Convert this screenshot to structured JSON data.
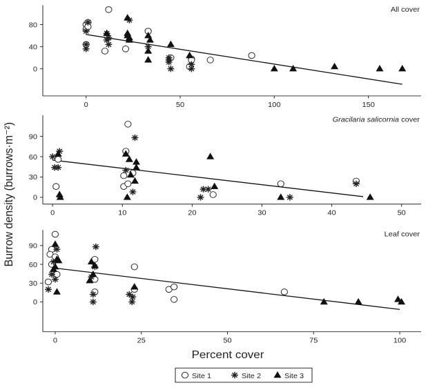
{
  "chart_data": {
    "type": "scatter",
    "ylabel": "Burrow density (burrows·m⁻²)",
    "xlabel": "Percent cover",
    "legend": {
      "placement": "bottom",
      "entries": [
        {
          "label": "Site 1",
          "marker": "open-circle"
        },
        {
          "label": "Site 2",
          "marker": "asterisk"
        },
        {
          "label": "Site 3",
          "marker": "filled-triangle"
        }
      ]
    },
    "panels": [
      {
        "title": "All cover",
        "title_italic": "",
        "title_rest": "All cover",
        "xticks": [
          0,
          50,
          100,
          150
        ],
        "yticks": [
          0,
          40,
          80
        ],
        "xlim": [
          -23,
          178
        ],
        "ylim": [
          -49,
          115
        ],
        "regression": [
          [
            0,
            62
          ],
          [
            168,
            -28
          ]
        ],
        "series": [
          {
            "name": "Site 1",
            "points": [
              [
                0,
                80
              ],
              [
                0,
                72
              ],
              [
                0,
                44
              ],
              [
                1,
                84
              ],
              [
                12,
                107
              ],
              [
                10,
                32
              ],
              [
                21,
                36
              ],
              [
                33,
                68
              ],
              [
                45,
                20
              ],
              [
                55,
                4
              ],
              [
                56,
                18
              ],
              [
                56,
                16
              ],
              [
                66,
                16
              ],
              [
                88,
                24
              ],
              [
                1,
                76
              ]
            ]
          },
          {
            "name": "Site 2",
            "points": [
              [
                0,
                68
              ],
              [
                1,
                84
              ],
              [
                0,
                44
              ],
              [
                0,
                36
              ],
              [
                11,
                64
              ],
              [
                11,
                52
              ],
              [
                12,
                44
              ],
              [
                12,
                56
              ],
              [
                23,
                88
              ],
              [
                33,
                40
              ],
              [
                44,
                12
              ],
              [
                44,
                16
              ],
              [
                45,
                0
              ],
              [
                56,
                0
              ],
              [
                56,
                8
              ],
              [
                44,
                20
              ]
            ]
          },
          {
            "name": "Site 3",
            "points": [
              [
                22,
                92
              ],
              [
                22,
                64
              ],
              [
                23,
                56
              ],
              [
                22,
                60
              ],
              [
                11,
                64
              ],
              [
                33,
                60
              ],
              [
                33,
                32
              ],
              [
                33,
                16
              ],
              [
                34,
                52
              ],
              [
                45,
                44
              ],
              [
                55,
                24
              ],
              [
                100,
                0
              ],
              [
                110,
                0
              ],
              [
                132,
                4
              ],
              [
                156,
                0
              ],
              [
                168,
                0
              ],
              [
                23,
                52
              ]
            ]
          }
        ]
      },
      {
        "title": "Gracilaria salicornia cover",
        "title_italic": "Gracilaria salicornia",
        "title_rest": " cover",
        "xticks": [
          0,
          10,
          20,
          30,
          40,
          50
        ],
        "yticks": [
          0,
          30,
          60,
          90
        ],
        "xlim": [
          -1.4,
          52.8
        ],
        "ylim": [
          -10,
          121
        ],
        "regression": [
          [
            0,
            55
          ],
          [
            44.5,
            1
          ]
        ],
        "series": [
          {
            "name": "Site 1",
            "points": [
              [
                0.5,
                16
              ],
              [
                0.8,
                56
              ],
              [
                10.8,
                108
              ],
              [
                10.5,
                68
              ],
              [
                10.2,
                32
              ],
              [
                10.2,
                16
              ],
              [
                10.8,
                20
              ],
              [
                11.5,
                36
              ],
              [
                23,
                4
              ],
              [
                32.7,
                20
              ],
              [
                43.5,
                24
              ]
            ]
          },
          {
            "name": "Site 2",
            "points": [
              [
                0,
                60
              ],
              [
                0.3,
                44
              ],
              [
                0.8,
                44
              ],
              [
                1,
                68
              ],
              [
                11.8,
                88
              ],
              [
                10.5,
                40
              ],
              [
                11.5,
                8
              ],
              [
                21.6,
                12
              ],
              [
                22.3,
                12
              ],
              [
                21.2,
                0
              ],
              [
                34,
                0
              ],
              [
                43.5,
                20
              ]
            ]
          },
          {
            "name": "Site 3",
            "points": [
              [
                0.8,
                64
              ],
              [
                1,
                4
              ],
              [
                1.1,
                0
              ],
              [
                10.5,
                64
              ],
              [
                11,
                56
              ],
              [
                12,
                52
              ],
              [
                12,
                44
              ],
              [
                11.2,
                33
              ],
              [
                11.8,
                24
              ],
              [
                10.7,
                0
              ],
              [
                22.6,
                60
              ],
              [
                23.2,
                16
              ],
              [
                32.7,
                0
              ],
              [
                45.5,
                0
              ]
            ]
          }
        ]
      },
      {
        "title": "Leaf cover",
        "title_italic": "",
        "title_rest": "Leaf cover",
        "xticks": [
          0,
          25,
          50,
          75,
          100
        ],
        "yticks": [
          0,
          30,
          60,
          90
        ],
        "xlim": [
          -3.6,
          106.2
        ],
        "ylim": [
          -47.6,
          114.8
        ],
        "regression": [
          [
            0,
            54
          ],
          [
            100,
            -12
          ]
        ],
        "series": [
          {
            "name": "Site 1",
            "points": [
              [
                0,
                108
              ],
              [
                -1,
                84
              ],
              [
                -1.5,
                76
              ],
              [
                0,
                72
              ],
              [
                -1,
                60
              ],
              [
                -2,
                32
              ],
              [
                0.5,
                44
              ],
              [
                11.5,
                68
              ],
              [
                11.5,
                36
              ],
              [
                11.5,
                16
              ],
              [
                23,
                56
              ],
              [
                23,
                20
              ],
              [
                33,
                20
              ],
              [
                34.5,
                24
              ],
              [
                34.5,
                4
              ],
              [
                66.5,
                16
              ]
            ]
          },
          {
            "name": "Site 2",
            "points": [
              [
                0.5,
                84
              ],
              [
                -0.5,
                64
              ],
              [
                0,
                36
              ],
              [
                -1,
                44
              ],
              [
                -2,
                20
              ],
              [
                11.8,
                88
              ],
              [
                11,
                12
              ],
              [
                11,
                0
              ],
              [
                11.5,
                56
              ],
              [
                10.5,
                40
              ],
              [
                21.5,
                12
              ],
              [
                22.5,
                8
              ],
              [
                22.3,
                0
              ]
            ]
          },
          {
            "name": "Site 3",
            "points": [
              [
                0,
                92
              ],
              [
                0.5,
                68
              ],
              [
                1,
                66
              ],
              [
                0,
                56
              ],
              [
                -0.5,
                52
              ],
              [
                0.5,
                16
              ],
              [
                10.5,
                64
              ],
              [
                11.5,
                58
              ],
              [
                11,
                44
              ],
              [
                10,
                34
              ],
              [
                23,
                24
              ],
              [
                78,
                0
              ],
              [
                88,
                0
              ],
              [
                99.5,
                4
              ],
              [
                100.5,
                0
              ]
            ]
          }
        ]
      }
    ]
  }
}
